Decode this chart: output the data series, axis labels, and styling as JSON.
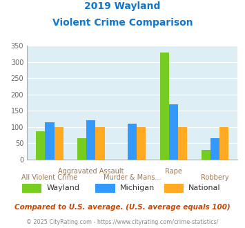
{
  "title_line1": "2019 Wayland",
  "title_line2": "Violent Crime Comparison",
  "series": {
    "Wayland": [
      87,
      65,
      0,
      328,
      30
    ],
    "Michigan": [
      115,
      120,
      110,
      170,
      65
    ],
    "National": [
      100,
      100,
      100,
      100,
      100
    ]
  },
  "group_labels_top": [
    "",
    "Aggravated Assault",
    "",
    "Rape",
    ""
  ],
  "group_labels_bottom": [
    "All Violent Crime",
    "",
    "Murder & Mans...",
    "",
    "Robbery"
  ],
  "colors": {
    "Wayland": "#77cc22",
    "Michigan": "#3399ff",
    "National": "#ffaa22"
  },
  "ylim": [
    0,
    350
  ],
  "yticks": [
    0,
    50,
    100,
    150,
    200,
    250,
    300,
    350
  ],
  "plot_area_color": "#ddeef5",
  "title_color": "#1177cc",
  "footer_text": "Compared to U.S. average. (U.S. average equals 100)",
  "footer_color": "#cc4400",
  "copyright_text": "© 2025 CityRating.com - https://www.cityrating.com/crime-statistics/",
  "copyright_color": "#888888",
  "legend_entries": [
    "Wayland",
    "Michigan",
    "National"
  ]
}
